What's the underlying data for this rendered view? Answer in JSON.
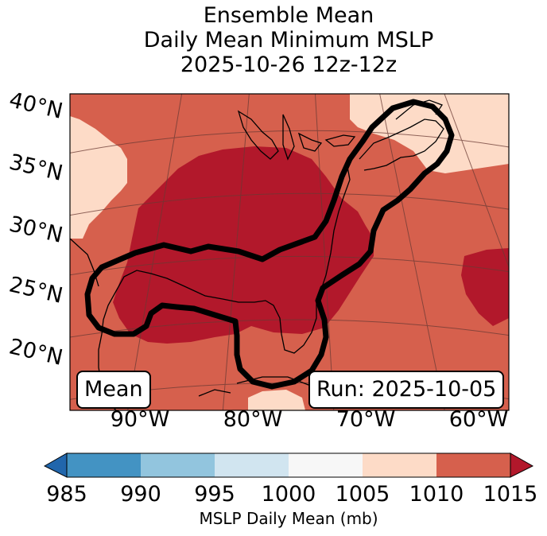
{
  "title": {
    "line1": "Ensemble Mean",
    "line2": "Daily Mean Minimum MSLP",
    "line3": "2025-10-26 12z-12z"
  },
  "map": {
    "lat_labels": [
      "40°N",
      "35°N",
      "30°N",
      "25°N",
      "20°N"
    ],
    "lon_labels": [
      "90°W",
      "80°W",
      "70°W",
      "60°W"
    ],
    "left_box": "Mean",
    "right_box": "Run: 2025-10-05",
    "colors": {
      "c_985_990": "#4393c3",
      "c_990_995": "#92c5de",
      "c_995_1000": "#d1e5f0",
      "c_1000_1005": "#f7f7f7",
      "c_1005_1010": "#fddbc7",
      "c_1010_1015": "#d6604d",
      "c_over_1015": "#b2182b",
      "c_under_985": "#2166ac"
    }
  },
  "colorbar": {
    "ticks": [
      "985",
      "990",
      "995",
      "1000",
      "1005",
      "1010",
      "1015"
    ],
    "label": "MSLP Daily Mean (mb)"
  }
}
